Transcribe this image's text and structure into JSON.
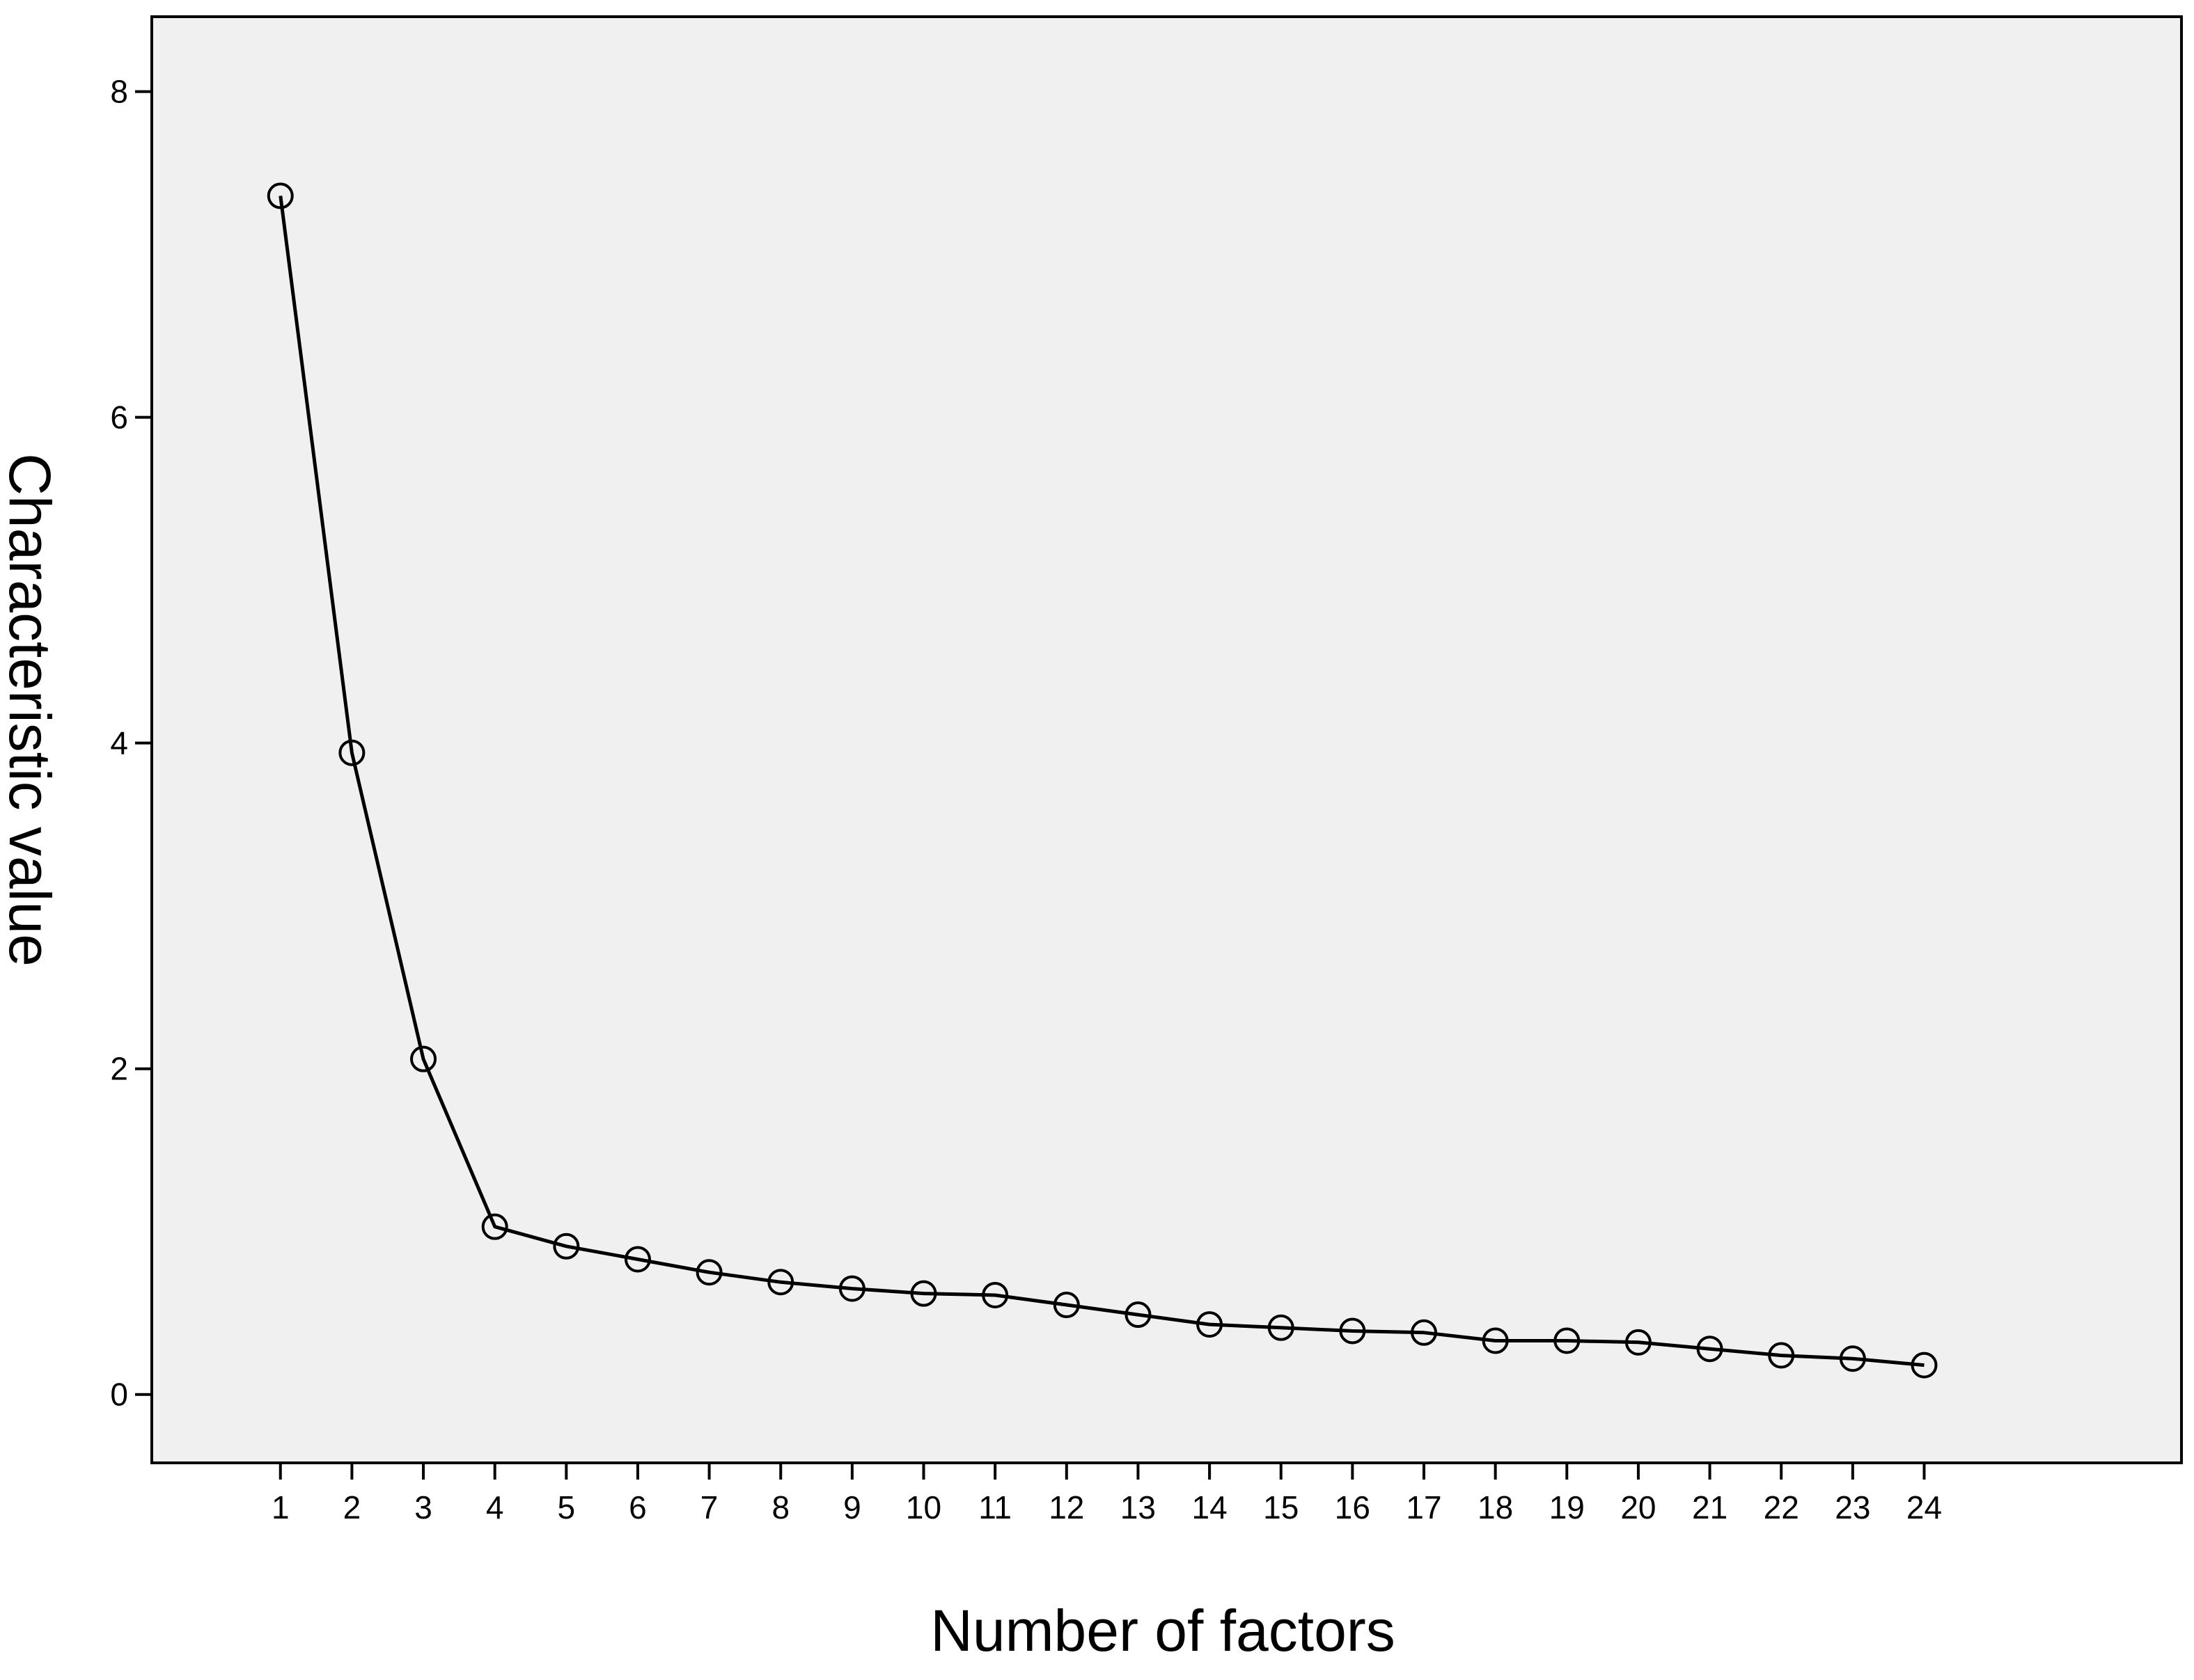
{
  "chart_data": {
    "type": "line",
    "title": "",
    "xlabel": "Number of factors",
    "ylabel": "Characteristic value",
    "x": [
      1,
      2,
      3,
      4,
      5,
      6,
      7,
      8,
      9,
      10,
      11,
      12,
      13,
      14,
      15,
      16,
      17,
      18,
      19,
      20,
      21,
      22,
      23,
      24
    ],
    "series": [
      {
        "values": [
          7.36,
          3.94,
          2.06,
          1.03,
          0.91,
          0.83,
          0.75,
          0.69,
          0.65,
          0.62,
          0.61,
          0.55,
          0.49,
          0.43,
          0.41,
          0.39,
          0.38,
          0.33,
          0.33,
          0.32,
          0.28,
          0.24,
          0.22,
          0.18
        ]
      }
    ],
    "xticks": [
      "1",
      "2",
      "3",
      "4",
      "5",
      "6",
      "7",
      "8",
      "9",
      "10",
      "11",
      "12",
      "13",
      "14",
      "15",
      "16",
      "17",
      "18",
      "19",
      "20",
      "21",
      "22",
      "23",
      "24"
    ],
    "yticks": [
      "0",
      "2",
      "4",
      "6",
      "8"
    ],
    "ytick_values": [
      0,
      2,
      4,
      6,
      8
    ],
    "ylim": [
      -0.42,
      8.46
    ],
    "xlim": [
      -0.8,
      27.6
    ],
    "grid": false,
    "legend": "none",
    "marker": "hollow-circle",
    "colors": {
      "plot_background": "#f0f0f0",
      "line": "#000000",
      "axis": "#000000"
    }
  }
}
